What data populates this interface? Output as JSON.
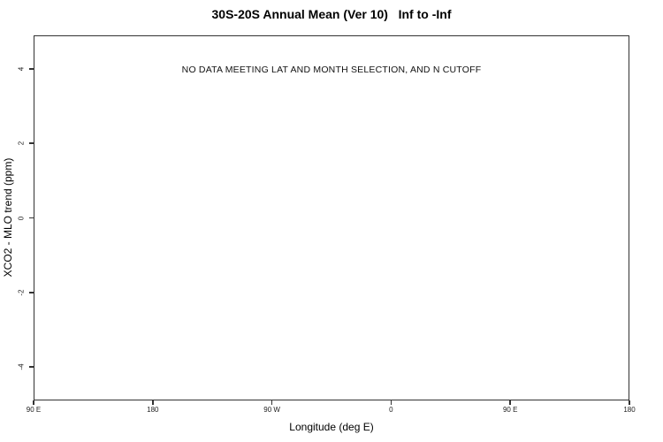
{
  "chart_data": {
    "type": "scatter",
    "title": "30S-20S Annual Mean (Ver 10)   Inf to -Inf",
    "annotation": "NO DATA MEETING LAT AND MONTH SELECTION, AND N CUTOFF",
    "xlabel": "Longitude (deg E)",
    "ylabel": "XCO2 - MLO trend (ppm)",
    "series": [],
    "x_ticks": [
      "90 E",
      "180",
      "90 W",
      "0",
      "90 E",
      "180"
    ],
    "x_tick_values": [
      90,
      180,
      270,
      360,
      450,
      540
    ],
    "xlim": [
      90,
      540
    ],
    "y_ticks": [
      "4",
      "2",
      "0",
      "-2",
      "-4"
    ],
    "y_tick_values": [
      4,
      2,
      0,
      -2,
      -4
    ],
    "ylim": [
      -4.9,
      4.9
    ],
    "grid": false,
    "legend": null,
    "colors": {
      "background": "#ffffff",
      "axis": "#333333",
      "text": "#000000",
      "tick_text": "#222222"
    }
  }
}
